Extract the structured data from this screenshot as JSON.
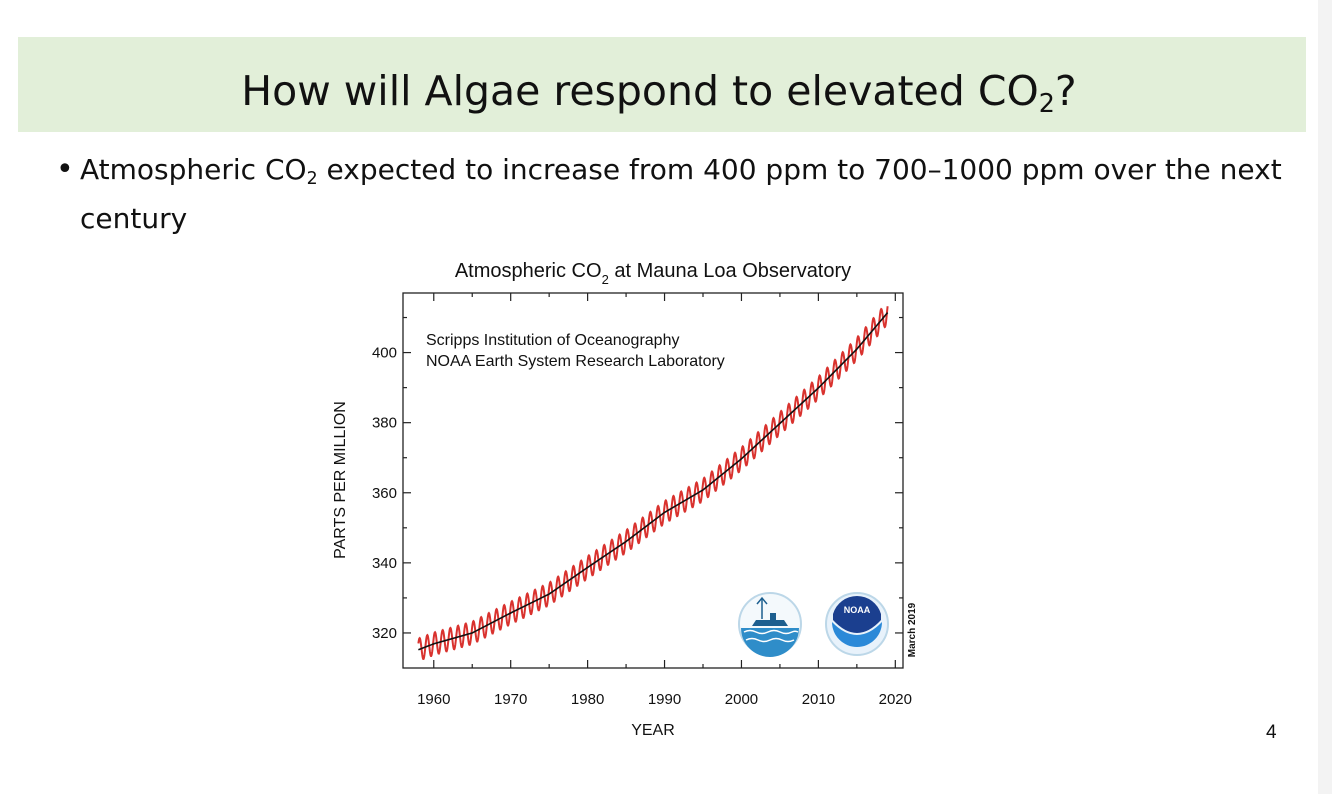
{
  "slide": {
    "title_pre": "How will Algae respond to elevated CO",
    "title_sub": "2",
    "title_post": "?",
    "bullet_pre": "Atmospheric CO",
    "bullet_sub": "2",
    "bullet_post": " expected to increase from 400 ppm to 700–1000 ppm over the next century",
    "page_number": "4"
  },
  "chart_data": {
    "type": "line",
    "title_pre": "Atmospheric CO",
    "title_sub": "2",
    "title_post": " at Mauna Loa Observatory",
    "xlabel": "YEAR",
    "ylabel": "PARTS PER MILLION",
    "xlim": [
      1956,
      2021
    ],
    "ylim": [
      310,
      417
    ],
    "xticks": [
      1960,
      1970,
      1980,
      1990,
      2000,
      2010,
      2020
    ],
    "yticks": [
      320,
      340,
      360,
      380,
      400
    ],
    "annotation_lines": [
      "Scripps Institution of Oceanography",
      "NOAA Earth System Research Laboratory"
    ],
    "date_stamp": "March 2019",
    "logo_text": "NOAA",
    "colors": {
      "monthly": "#d9322e",
      "trend": "#111111"
    },
    "series": [
      {
        "kind": "monthly",
        "seasonal_amplitude_ppm": 3.2,
        "x": [
          1958,
          1960,
          1965,
          1970,
          1975,
          1980,
          1985,
          1990,
          1995,
          2000,
          2005,
          2010,
          2015,
          2019
        ],
        "y": [
          315.2,
          316.9,
          320.0,
          325.7,
          331.1,
          338.7,
          346.1,
          354.4,
          360.8,
          369.7,
          379.8,
          389.9,
          401.0,
          411.4
        ]
      },
      {
        "kind": "trend",
        "x": [
          1958,
          1960,
          1965,
          1970,
          1975,
          1980,
          1985,
          1990,
          1995,
          2000,
          2005,
          2010,
          2015,
          2019
        ],
        "y": [
          315.2,
          316.9,
          320.0,
          325.7,
          331.1,
          338.7,
          346.1,
          354.4,
          360.8,
          369.7,
          379.8,
          389.9,
          401.0,
          411.4
        ]
      }
    ]
  }
}
